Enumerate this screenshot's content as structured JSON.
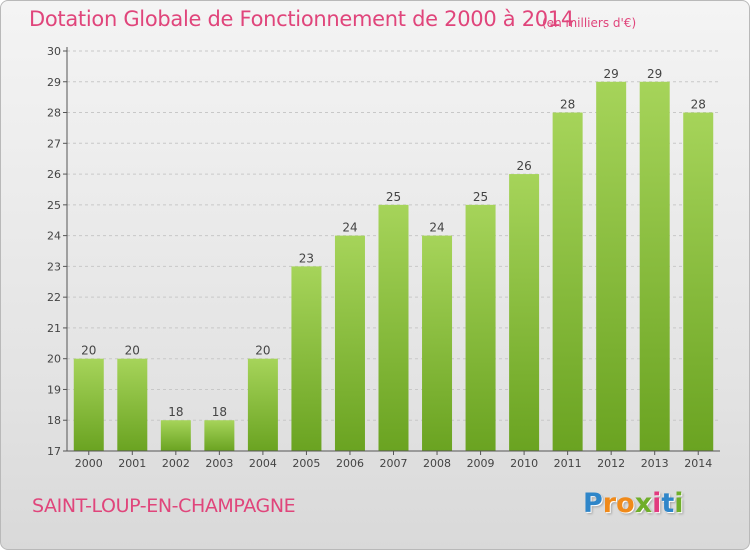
{
  "header": {
    "title": "Dotation Globale de Fonctionnement de 2000 à 2014",
    "unit": "(en milliers d'€)"
  },
  "footer": {
    "commune": "SAINT-LOUP-EN-CHAMPAGNE",
    "logo": {
      "letters": [
        "P",
        "r",
        "o",
        "x",
        "i",
        "t",
        "i"
      ],
      "colors": [
        "#2f86c9",
        "#f08a1a",
        "#f08a1a",
        "#6fae2a",
        "#e23a7f",
        "#2f86c9",
        "#6fae2a"
      ]
    }
  },
  "chart_data": {
    "type": "bar",
    "title": "Dotation Globale de Fonctionnement de 2000 à 2014",
    "subtitle": "(en milliers d'€)",
    "categories": [
      "2000",
      "2001",
      "2002",
      "2003",
      "2004",
      "2005",
      "2006",
      "2007",
      "2008",
      "2009",
      "2010",
      "2011",
      "2012",
      "2013",
      "2014"
    ],
    "values": [
      20,
      20,
      18,
      18,
      20,
      23,
      24,
      25,
      24,
      25,
      26,
      28,
      29,
      29,
      28
    ],
    "ylim": [
      17,
      30
    ],
    "yticks": [
      17,
      18,
      19,
      20,
      21,
      22,
      23,
      24,
      25,
      26,
      27,
      28,
      29,
      30
    ],
    "grid": true,
    "colors": {
      "bar_light": "#a6d45a",
      "bar_dark": "#6aa321",
      "grid": "#c8c8c8",
      "axis": "#555555",
      "label": "#444444"
    }
  }
}
